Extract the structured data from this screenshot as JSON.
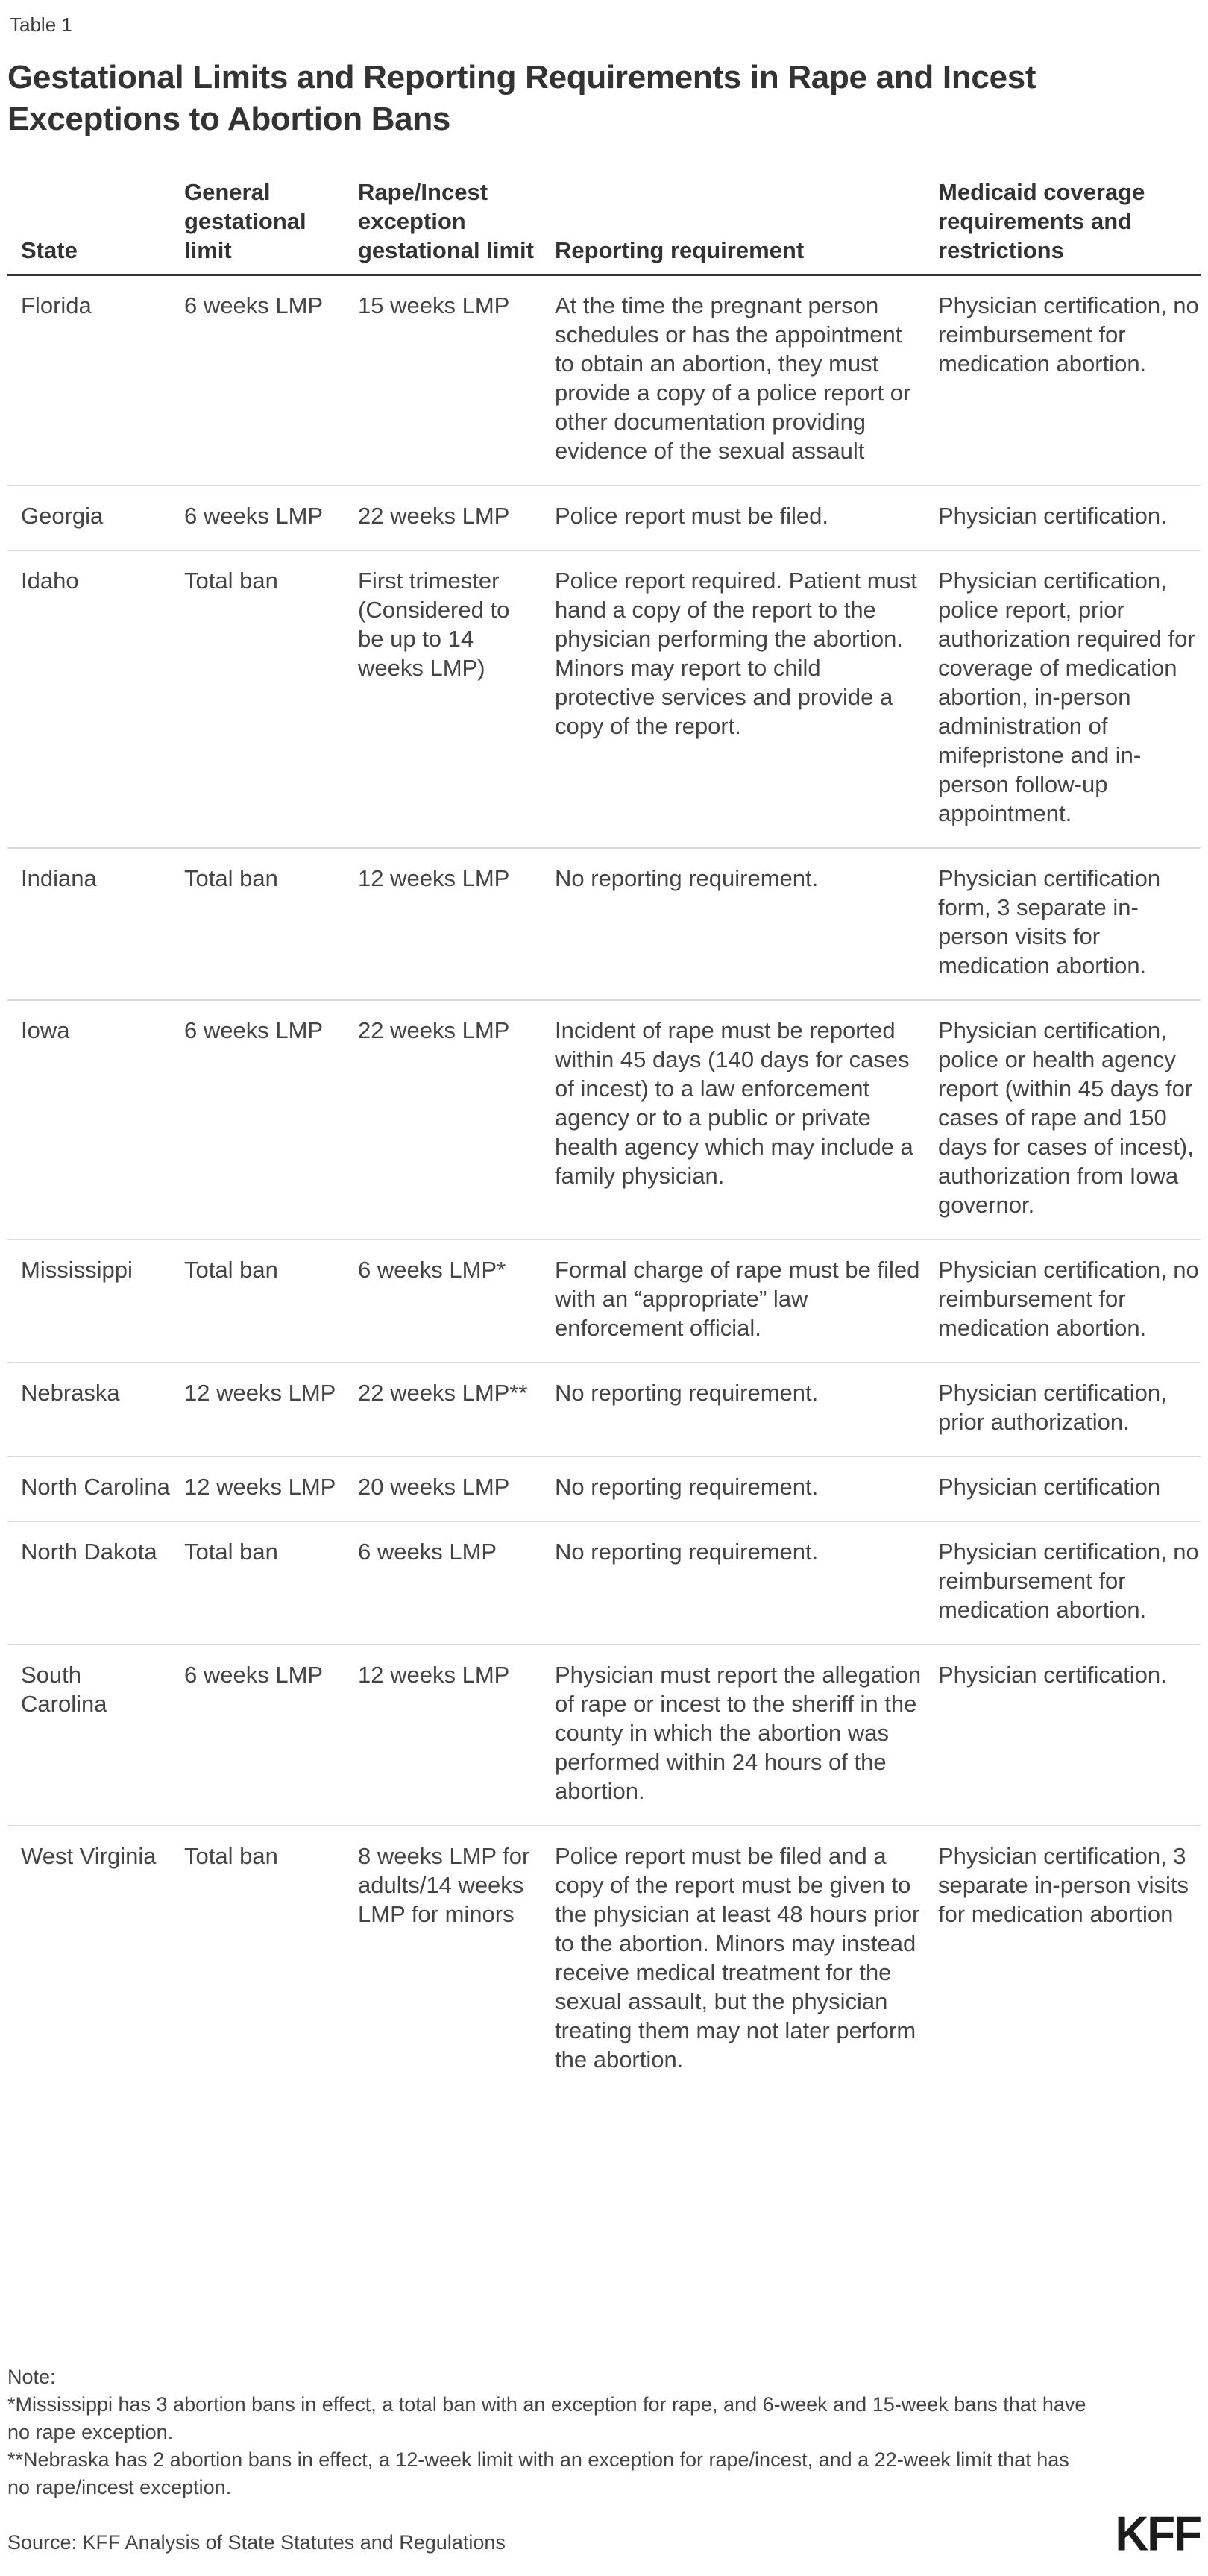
{
  "header": {
    "table_label": "Table 1",
    "title": "Gestational Limits and Reporting Requirements in Rape and Incest Exceptions to Abortion Bans"
  },
  "table": {
    "columns": [
      "State",
      "General gestational limit",
      "Rape/Incest exception gestational limit",
      "Reporting requirement",
      "Medicaid coverage requirements and restrictions"
    ],
    "rows": [
      {
        "state": "Florida",
        "general": "6 weeks LMP",
        "exception": "15 weeks LMP",
        "reporting": "At the time the pregnant person schedules or has the appointment to obtain an abortion, they must provide a copy of a police report or other documentation providing evidence of the sexual assault",
        "medicaid": "Physician certification, no reimbursement for medication abortion."
      },
      {
        "state": "Georgia",
        "general": "6 weeks LMP",
        "exception": "22 weeks LMP",
        "reporting": "Police report must be filed.",
        "medicaid": "Physician certification."
      },
      {
        "state": "Idaho",
        "general": "Total ban",
        "exception": "First trimester (Considered to be up to 14 weeks LMP)",
        "reporting": "Police report required. Patient must hand a copy of the report to the physician performing the abortion. Minors may report to child protective services and provide a copy of the report.",
        "medicaid": "Physician certification, police report, prior authorization required for coverage of medication abortion, in-person administration of mifepristone and in-person follow-up appointment."
      },
      {
        "state": "Indiana",
        "general": "Total ban",
        "exception": "12 weeks LMP",
        "reporting": "No reporting requirement.",
        "medicaid": "Physician certification form, 3 separate in-person visits for medication abortion."
      },
      {
        "state": "Iowa",
        "general": "6 weeks LMP",
        "exception": "22 weeks LMP",
        "reporting": "Incident of rape must be reported within 45 days (140 days for cases of incest) to a law enforcement agency or to a public or private health agency which may include a family physician.",
        "medicaid": "Physician certification, police or health agency report (within 45 days for cases of rape and 150 days for cases of incest), authorization from Iowa governor."
      },
      {
        "state": "Mississippi",
        "general": "Total ban",
        "exception": "6 weeks LMP*",
        "reporting": "Formal charge of rape must be filed with an “appropriate” law enforcement official.",
        "medicaid": "Physician certification, no reimbursement for medication abortion."
      },
      {
        "state": "Nebraska",
        "general": "12 weeks LMP",
        "exception": "22 weeks LMP**",
        "reporting": "No reporting requirement.",
        "medicaid": "Physician certification, prior authorization."
      },
      {
        "state": "North Carolina",
        "general": "12 weeks LMP",
        "exception": "20 weeks LMP",
        "reporting": "No reporting requirement.",
        "medicaid": "Physician certification"
      },
      {
        "state": "North Dakota",
        "general": "Total ban",
        "exception": "6 weeks LMP",
        "reporting": "No reporting requirement.",
        "medicaid": "Physician certification, no reimbursement for medication abortion."
      },
      {
        "state": "South Carolina",
        "general": "6 weeks LMP",
        "exception": "12 weeks LMP",
        "reporting": "Physician must report the allegation of rape or incest to the sheriff in the county in which the abortion was performed within 24 hours of the abortion.",
        "medicaid": "Physician certification."
      },
      {
        "state": "West Virginia",
        "general": "Total ban",
        "exception": "8 weeks LMP for adults/14 weeks LMP for minors",
        "reporting": "Police report must be filed and a copy of the report must be given to the physician at least 48 hours prior to the abortion. Minors may instead receive medical treatment for the sexual assault, but the physician treating them may not later perform the abortion.",
        "medicaid": "Physician certification, 3 separate in-person visits for medication abortion"
      }
    ]
  },
  "notes": {
    "label": "Note:",
    "note1": "*Mississippi has 3 abortion bans in effect, a total ban with an exception for rape, and 6-week and 15-week bans that have no rape exception.",
    "note2": "**Nebraska has 2 abortion bans in effect, a 12-week limit with an exception for rape/incest, and a 22-week limit that has no rape/incest exception.",
    "source": "Source: KFF Analysis of State Statutes and Regulations"
  },
  "branding": {
    "logo_text": "KFF"
  }
}
